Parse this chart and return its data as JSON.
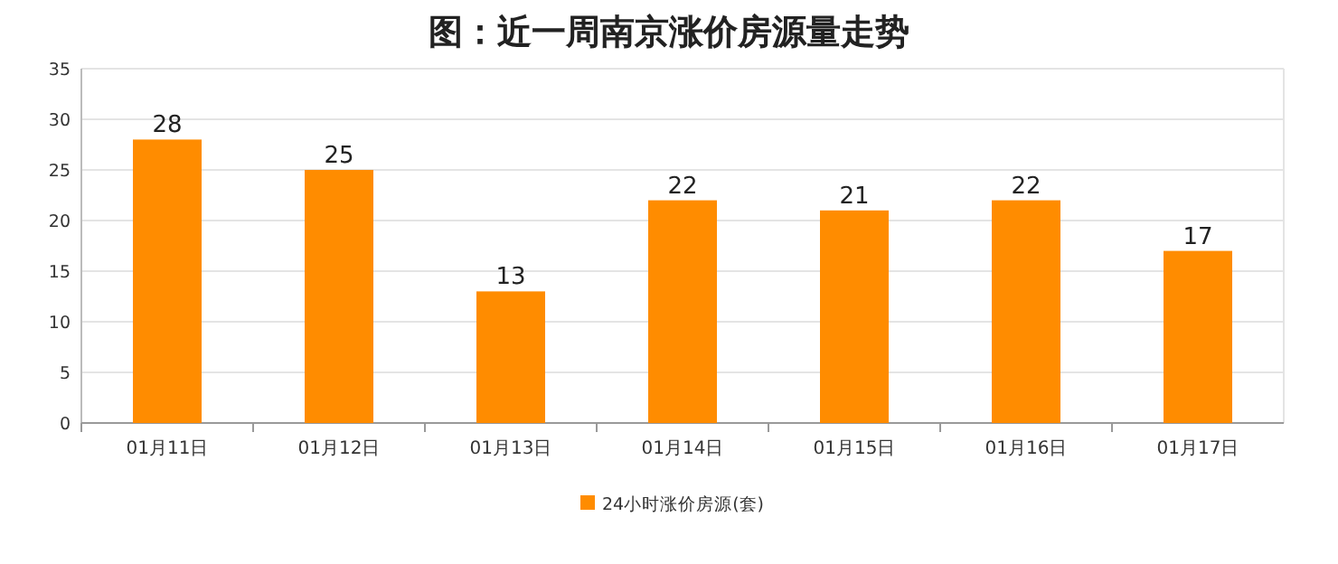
{
  "chart_data": {
    "type": "bar",
    "title": "图：近一周南京涨价房源量走势",
    "categories": [
      "01月11日",
      "01月12日",
      "01月13日",
      "01月14日",
      "01月15日",
      "01月16日",
      "01月17日"
    ],
    "series": [
      {
        "name": "24小时涨价房源(套)",
        "color": "#ff8c00",
        "values": [
          28,
          25,
          13,
          22,
          21,
          22,
          17
        ]
      }
    ],
    "ylim": [
      0,
      35
    ],
    "yticks": [
      0,
      5,
      10,
      15,
      20,
      25,
      30,
      35
    ],
    "grid": "y",
    "data_labels": true,
    "legend": "bottom"
  }
}
